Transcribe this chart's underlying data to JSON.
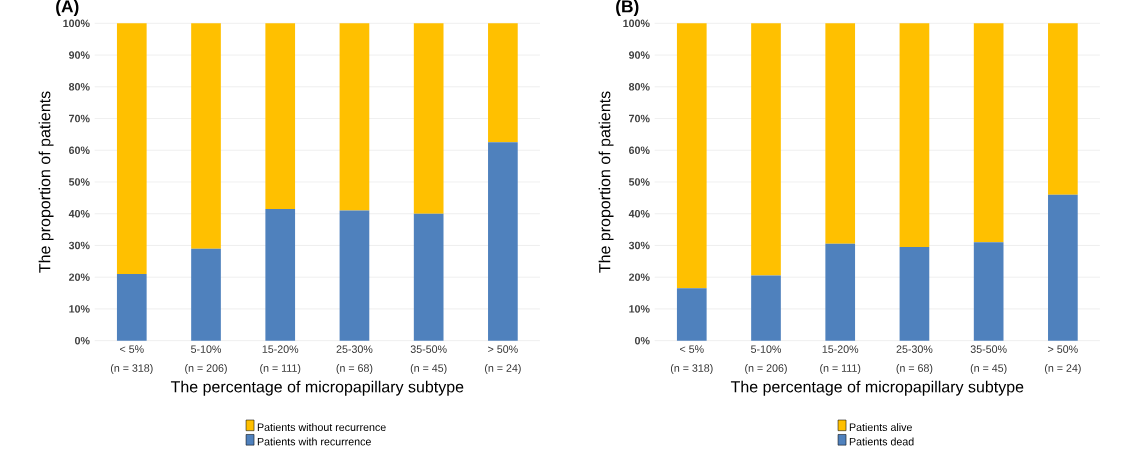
{
  "chart_data": [
    {
      "type": "bar",
      "stacked": true,
      "title": "(A)",
      "xlabel": "The percentage of micropapillary subtype",
      "ylabel": "The proportion of patients",
      "categories": [
        "< 5%",
        "5-10%",
        "15-20%",
        "25-30%",
        "35-50%",
        "> 50%"
      ],
      "annotations": [
        "(n = 318)",
        "(n = 206)",
        "(n = 111)",
        "(n = 68)",
        "(n = 45)",
        "(n = 24)"
      ],
      "series": [
        {
          "name": "Patients with recurrence",
          "color": "#4f81bd",
          "values": [
            21,
            29,
            41.5,
            41,
            40,
            62.5
          ]
        },
        {
          "name": "Patients without recurrence",
          "color": "#ffc000",
          "values": [
            79,
            71,
            58.5,
            59,
            60,
            37.5
          ]
        }
      ],
      "ylim": [
        0,
        100
      ],
      "yticks": [
        {
          "value": 0,
          "label": "0%"
        },
        {
          "value": 10,
          "label": "10%"
        },
        {
          "value": 20,
          "label": "20%"
        },
        {
          "value": 30,
          "label": "30%"
        },
        {
          "value": 40,
          "label": "40%"
        },
        {
          "value": 50,
          "label": "50%"
        },
        {
          "value": 60,
          "label": "60%"
        },
        {
          "value": 70,
          "label": "70%"
        },
        {
          "value": 80,
          "label": "80%"
        },
        {
          "value": 90,
          "label": "90%"
        },
        {
          "value": 100,
          "label": "100%"
        }
      ],
      "grid": "y",
      "legend": "bottom"
    },
    {
      "type": "bar",
      "stacked": true,
      "title": "(B)",
      "xlabel": "The percentage of micropapillary subtype",
      "ylabel": "The proportion of patients",
      "categories": [
        "< 5%",
        "5-10%",
        "15-20%",
        "25-30%",
        "35-50%",
        "> 50%"
      ],
      "annotations": [
        "(n = 318)",
        "(n = 206)",
        "(n = 111)",
        "(n = 68)",
        "(n = 45)",
        "(n = 24)"
      ],
      "series": [
        {
          "name": "Patients dead",
          "color": "#4f81bd",
          "values": [
            16.5,
            20.5,
            30.5,
            29.5,
            31,
            46
          ]
        },
        {
          "name": "Patients alive",
          "color": "#ffc000",
          "values": [
            83.5,
            79.5,
            69.5,
            70.5,
            69,
            54
          ]
        }
      ],
      "ylim": [
        0,
        100
      ],
      "yticks": [
        {
          "value": 0,
          "label": "0%"
        },
        {
          "value": 10,
          "label": "10%"
        },
        {
          "value": 20,
          "label": "20%"
        },
        {
          "value": 30,
          "label": "30%"
        },
        {
          "value": 40,
          "label": "40%"
        },
        {
          "value": 50,
          "label": "50%"
        },
        {
          "value": 60,
          "label": "60%"
        },
        {
          "value": 70,
          "label": "70%"
        },
        {
          "value": 80,
          "label": "80%"
        },
        {
          "value": 90,
          "label": "90%"
        },
        {
          "value": 100,
          "label": "100%"
        }
      ],
      "grid": "y",
      "legend": "bottom"
    }
  ]
}
